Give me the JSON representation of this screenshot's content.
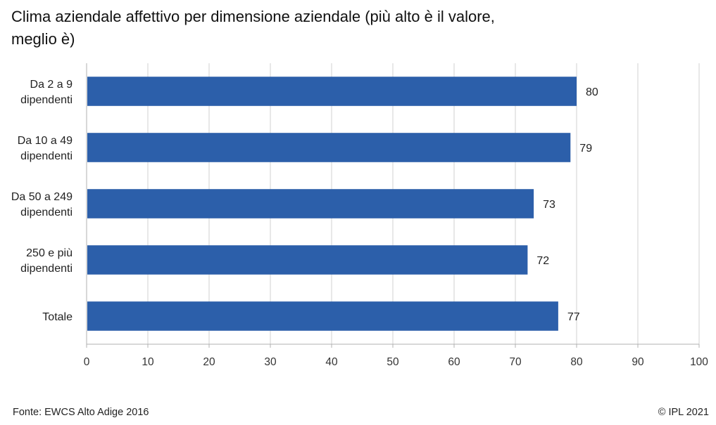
{
  "title_lines": [
    "Clima aziendale affettivo per dimensione aziendale (più alto è il valore,",
    "meglio è)"
  ],
  "footer": {
    "source": "Fonte: EWCS Alto Adige 2016",
    "copyright": "© IPL 2021"
  },
  "chart_data": {
    "type": "bar",
    "orientation": "horizontal",
    "title": "Clima aziendale affettivo per dimensione aziendale (più alto è il valore, meglio è)",
    "categories": [
      [
        "Da 2 a 9",
        "dipendenti"
      ],
      [
        "Da 10 a 49",
        "dipendenti"
      ],
      [
        "Da 50 a 249",
        "dipendenti"
      ],
      [
        "250 e più",
        "dipendenti"
      ],
      [
        "Totale"
      ]
    ],
    "values": [
      80,
      79,
      73,
      72,
      77
    ],
    "xlim": [
      0,
      100
    ],
    "xticks": [
      0,
      10,
      20,
      30,
      40,
      50,
      60,
      70,
      80,
      90,
      100
    ],
    "grid": "vertical",
    "data_labels": true,
    "colors": {
      "bar": "#2c5faa",
      "grid": "#d0d0d0",
      "axis": "#b0b0b0"
    }
  }
}
